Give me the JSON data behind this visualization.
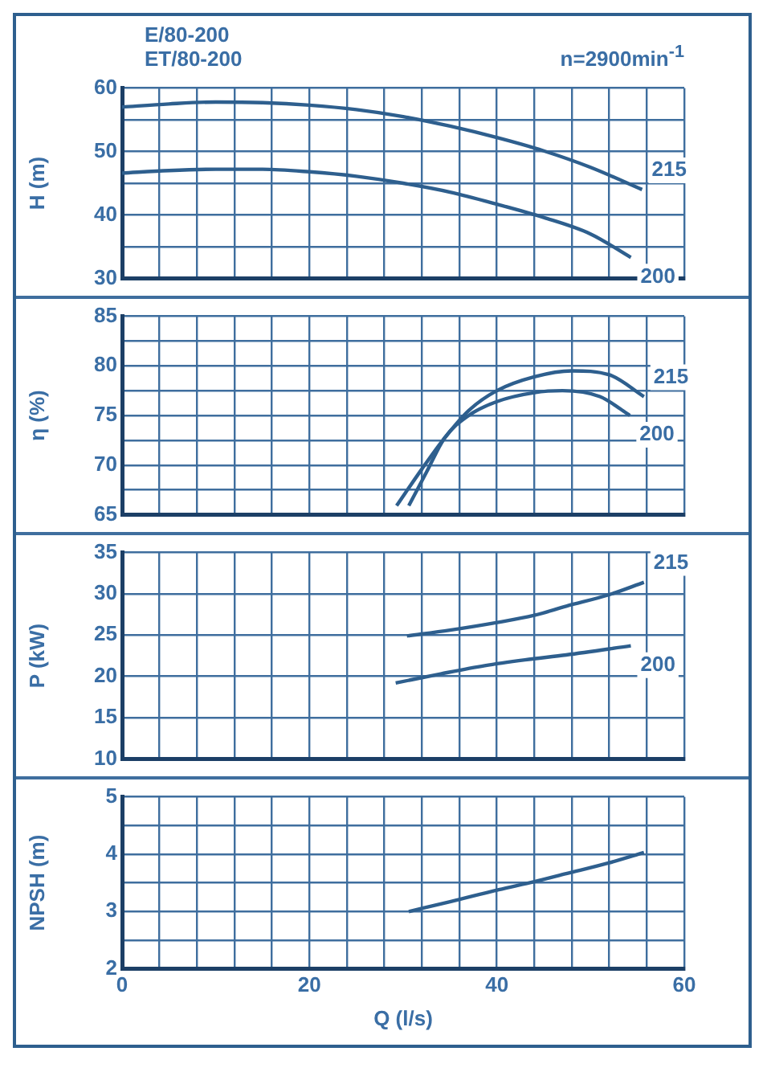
{
  "chart_data": [
    {
      "type": "line",
      "title": "E/80-200",
      "subtitle": "ET/80-200",
      "annotations": [
        "n=2900min$^{-1}$"
      ],
      "ylabel": "H (m)",
      "tick_labels": "y",
      "grid": true,
      "xlim": [
        0,
        60
      ],
      "xticks": [
        0,
        {
          "value": 4,
          "label": null
        },
        {
          "value": 8,
          "label": null
        },
        {
          "value": 12,
          "label": null
        },
        {
          "value": 16,
          "label": null
        },
        20,
        {
          "value": 24,
          "label": null
        },
        {
          "value": 28,
          "label": null
        },
        {
          "value": 32,
          "label": null
        },
        {
          "value": 36,
          "label": null
        },
        40,
        {
          "value": 44,
          "label": null
        },
        {
          "value": 48,
          "label": null
        },
        {
          "value": 52,
          "label": null
        },
        {
          "value": 56,
          "label": null
        },
        60
      ],
      "ylim": [
        30,
        60
      ],
      "yticks": [
        30,
        {
          "value": 35,
          "label": null
        },
        40,
        {
          "value": 45,
          "label": null
        },
        50,
        {
          "value": 55,
          "label": null
        },
        60
      ],
      "series": [
        {
          "name": "215",
          "color": "#2e5f8e",
          "x": [
            0,
            5,
            10,
            15,
            20,
            25,
            30,
            35,
            40,
            45,
            50,
            55.5
          ],
          "values": [
            57,
            57.5,
            57.8,
            57.7,
            57.3,
            56.6,
            55.5,
            54,
            52.2,
            50.1,
            47.5,
            44
          ]
        },
        {
          "name": "200",
          "color": "#2e5f8e",
          "x": [
            0,
            5,
            10,
            15,
            20,
            25,
            30,
            35,
            40,
            45,
            50,
            54.3
          ],
          "values": [
            46.6,
            47,
            47.2,
            47.2,
            46.8,
            46.1,
            45,
            43.6,
            41.7,
            39.6,
            37,
            33.3
          ]
        }
      ]
    },
    {
      "type": "line",
      "ylabel": "η (%)",
      "tick_labels": "y",
      "grid": true,
      "xlim": [
        0,
        60
      ],
      "xticks": [
        0,
        {
          "value": 4,
          "label": null
        },
        {
          "value": 8,
          "label": null
        },
        {
          "value": 12,
          "label": null
        },
        {
          "value": 16,
          "label": null
        },
        20,
        {
          "value": 24,
          "label": null
        },
        {
          "value": 28,
          "label": null
        },
        {
          "value": 32,
          "label": null
        },
        {
          "value": 36,
          "label": null
        },
        40,
        {
          "value": 44,
          "label": null
        },
        {
          "value": 48,
          "label": null
        },
        {
          "value": 52,
          "label": null
        },
        {
          "value": 56,
          "label": null
        },
        60
      ],
      "ylim": [
        65,
        85
      ],
      "yticks": [
        65,
        {
          "value": 67.5,
          "label": null
        },
        70,
        {
          "value": 72.5,
          "label": null
        },
        75,
        {
          "value": 77.5,
          "label": null
        },
        80,
        {
          "value": 82.5,
          "label": null
        },
        85
      ],
      "series": [
        {
          "name": "215",
          "color": "#2e5f8e",
          "x": [
            29.3,
            32,
            34.4,
            37,
            40,
            44,
            48,
            52,
            55.7
          ],
          "values": [
            65.9,
            69.6,
            72.7,
            75.5,
            77.5,
            78.9,
            79.5,
            79.1,
            76.9
          ]
        },
        {
          "name": "200",
          "color": "#2e5f8e",
          "x": [
            30.6,
            32.5,
            34.4,
            37,
            40,
            44,
            47,
            51,
            54.2
          ],
          "values": [
            65.9,
            69.3,
            72.7,
            75,
            76.4,
            77.3,
            77.5,
            76.9,
            75
          ]
        }
      ]
    },
    {
      "type": "line",
      "ylabel": "P (kW)",
      "tick_labels": "y",
      "grid": true,
      "xlim": [
        0,
        60
      ],
      "xticks": [
        0,
        {
          "value": 4,
          "label": null
        },
        {
          "value": 8,
          "label": null
        },
        {
          "value": 12,
          "label": null
        },
        {
          "value": 16,
          "label": null
        },
        20,
        {
          "value": 24,
          "label": null
        },
        {
          "value": 28,
          "label": null
        },
        {
          "value": 32,
          "label": null
        },
        {
          "value": 36,
          "label": null
        },
        40,
        {
          "value": 44,
          "label": null
        },
        {
          "value": 48,
          "label": null
        },
        {
          "value": 52,
          "label": null
        },
        {
          "value": 56,
          "label": null
        },
        60
      ],
      "ylim": [
        10,
        35
      ],
      "yticks": [
        10,
        15,
        20,
        25,
        30,
        35
      ],
      "series": [
        {
          "name": "215",
          "color": "#2e5f8e",
          "x": [
            30.4,
            35,
            39.9,
            44,
            47.4,
            52,
            55.7
          ],
          "values": [
            24.9,
            25.6,
            26.5,
            27.4,
            28.5,
            29.9,
            31.4
          ]
        },
        {
          "name": "200",
          "color": "#2e5f8e",
          "x": [
            29.2,
            34,
            38.7,
            43,
            47.4,
            54.3
          ],
          "values": [
            19.2,
            20.3,
            21.3,
            22,
            22.6,
            23.7
          ]
        }
      ]
    },
    {
      "type": "line",
      "xlabel": "Q (l/s)",
      "ylabel": "NPSH (m)",
      "grid": true,
      "xlim": [
        0,
        60
      ],
      "xticks": [
        0,
        {
          "value": 4,
          "label": null
        },
        {
          "value": 8,
          "label": null
        },
        {
          "value": 12,
          "label": null
        },
        {
          "value": 16,
          "label": null
        },
        20,
        {
          "value": 24,
          "label": null
        },
        {
          "value": 28,
          "label": null
        },
        {
          "value": 32,
          "label": null
        },
        {
          "value": 36,
          "label": null
        },
        40,
        {
          "value": 44,
          "label": null
        },
        {
          "value": 48,
          "label": null
        },
        {
          "value": 52,
          "label": null
        },
        {
          "value": 56,
          "label": null
        },
        60
      ],
      "ylim": [
        2,
        5
      ],
      "yticks": [
        2,
        {
          "value": 2.5,
          "label": null
        },
        3,
        {
          "value": 3.5,
          "label": null
        },
        4,
        {
          "value": 4.5,
          "label": null
        },
        5
      ],
      "series": [
        {
          "color": "#2e5f8e",
          "x": [
            30.6,
            35,
            40.2,
            44,
            47.4,
            52,
            55.7
          ],
          "values": [
            3,
            3.17,
            3.38,
            3.52,
            3.66,
            3.85,
            4.03
          ]
        }
      ]
    }
  ]
}
